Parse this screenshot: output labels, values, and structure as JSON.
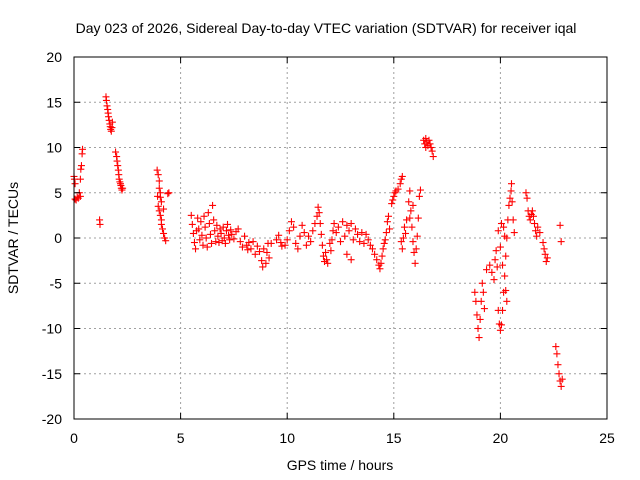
{
  "chart_data": {
    "type": "scatter",
    "title": "Day 023 of 2026, Sidereal Day-to-day VTEC variation (SDTVAR) for receiver iqal",
    "xlabel": "GPS time / hours",
    "ylabel": "SDTVAR / TECUs",
    "xlim": [
      0,
      25
    ],
    "ylim": [
      -20,
      20
    ],
    "xticks": [
      0,
      5,
      10,
      15,
      20,
      25
    ],
    "yticks": [
      -20,
      -15,
      -10,
      -5,
      0,
      5,
      10,
      15,
      20
    ],
    "grid": true,
    "marker": "+",
    "series": [
      {
        "name": "SDTVAR",
        "color": "#ff0000",
        "points": [
          [
            0.0,
            6.8
          ],
          [
            0.02,
            6.5
          ],
          [
            0.05,
            6.0
          ],
          [
            0.05,
            4.3
          ],
          [
            0.1,
            4.2
          ],
          [
            0.15,
            4.5
          ],
          [
            0.2,
            4.4
          ],
          [
            0.25,
            5.0
          ],
          [
            0.3,
            6.5
          ],
          [
            0.32,
            7.6
          ],
          [
            0.35,
            8.0
          ],
          [
            0.38,
            9.3
          ],
          [
            0.4,
            9.8
          ],
          [
            0.3,
            4.6
          ],
          [
            1.2,
            2.0
          ],
          [
            1.22,
            1.5
          ],
          [
            1.5,
            15.6
          ],
          [
            1.52,
            15.2
          ],
          [
            1.55,
            14.6
          ],
          [
            1.58,
            14.2
          ],
          [
            1.6,
            13.8
          ],
          [
            1.62,
            13.4
          ],
          [
            1.65,
            13.0
          ],
          [
            1.68,
            12.6
          ],
          [
            1.7,
            12.3
          ],
          [
            1.72,
            12.0
          ],
          [
            1.75,
            11.8
          ],
          [
            1.78,
            12.2
          ],
          [
            1.8,
            12.8
          ],
          [
            1.95,
            9.5
          ],
          [
            2.0,
            9.0
          ],
          [
            2.02,
            8.5
          ],
          [
            2.05,
            8.0
          ],
          [
            2.08,
            7.5
          ],
          [
            2.1,
            7.0
          ],
          [
            2.12,
            6.5
          ],
          [
            2.15,
            6.2
          ],
          [
            2.18,
            6.0
          ],
          [
            2.2,
            5.8
          ],
          [
            2.22,
            5.5
          ],
          [
            2.25,
            5.3
          ],
          [
            2.28,
            5.5
          ],
          [
            3.9,
            7.5
          ],
          [
            3.95,
            7.0
          ],
          [
            4.0,
            6.3
          ],
          [
            4.0,
            5.5
          ],
          [
            4.05,
            5.0
          ],
          [
            4.05,
            4.5
          ],
          [
            4.1,
            4.0
          ],
          [
            3.95,
            3.5
          ],
          [
            4.0,
            3.0
          ],
          [
            4.05,
            2.5
          ],
          [
            4.1,
            2.0
          ],
          [
            4.1,
            1.5
          ],
          [
            4.15,
            1.0
          ],
          [
            4.2,
            0.5
          ],
          [
            4.25,
            0.0
          ],
          [
            4.3,
            -0.3
          ],
          [
            4.2,
            3.2
          ],
          [
            4.4,
            4.9
          ],
          [
            4.45,
            5.0
          ],
          [
            3.92,
            4.6
          ],
          [
            5.5,
            2.5
          ],
          [
            5.55,
            1.5
          ],
          [
            5.6,
            0.5
          ],
          [
            5.65,
            -0.5
          ],
          [
            5.7,
            -1.2
          ],
          [
            5.75,
            0.8
          ],
          [
            5.8,
            2.2
          ],
          [
            5.85,
            1.0
          ],
          [
            5.9,
            -0.2
          ],
          [
            5.95,
            1.8
          ],
          [
            6.0,
            0.3
          ],
          [
            6.05,
            -0.8
          ],
          [
            6.1,
            2.4
          ],
          [
            6.15,
            1.2
          ],
          [
            6.2,
            0.0
          ],
          [
            6.25,
            -1.0
          ],
          [
            6.3,
            2.8
          ],
          [
            6.35,
            1.6
          ],
          [
            6.4,
            0.4
          ],
          [
            6.45,
            -0.6
          ],
          [
            6.5,
            3.6
          ],
          [
            6.55,
            2.0
          ],
          [
            6.6,
            0.8
          ],
          [
            6.65,
            -0.4
          ],
          [
            6.7,
            1.4
          ],
          [
            6.75,
            0.2
          ],
          [
            6.8,
            -0.5
          ],
          [
            6.85,
            1.0
          ],
          [
            6.9,
            0.5
          ],
          [
            6.95,
            -0.3
          ],
          [
            7.0,
            1.2
          ],
          [
            7.05,
            0.0
          ],
          [
            7.1,
            -0.6
          ],
          [
            7.15,
            0.8
          ],
          [
            7.2,
            1.5
          ],
          [
            7.25,
            0.3
          ],
          [
            7.3,
            -0.2
          ],
          [
            7.35,
            0.9
          ],
          [
            7.4,
            0.4
          ],
          [
            7.5,
            -0.1
          ],
          [
            7.6,
            0.7
          ],
          [
            7.7,
            1.0
          ],
          [
            7.8,
            -0.4
          ],
          [
            7.9,
            -1.0
          ],
          [
            8.0,
            0.2
          ],
          [
            8.1,
            -0.8
          ],
          [
            8.15,
            -1.3
          ],
          [
            8.2,
            -0.5
          ],
          [
            8.3,
            -1.2
          ],
          [
            8.4,
            -0.4
          ],
          [
            8.5,
            -1.8
          ],
          [
            8.6,
            -0.9
          ],
          [
            8.7,
            -1.5
          ],
          [
            8.8,
            -2.5
          ],
          [
            8.9,
            -1.2
          ],
          [
            9.0,
            -2.8
          ],
          [
            9.05,
            -1.6
          ],
          [
            9.1,
            -0.6
          ],
          [
            9.15,
            -2.2
          ],
          [
            8.85,
            -3.2
          ],
          [
            9.25,
            -0.6
          ],
          [
            9.5,
            -0.2
          ],
          [
            9.6,
            0.3
          ],
          [
            9.7,
            -0.5
          ],
          [
            9.75,
            -0.9
          ],
          [
            9.9,
            -0.8
          ],
          [
            10.0,
            -0.2
          ],
          [
            10.1,
            0.8
          ],
          [
            10.2,
            1.8
          ],
          [
            10.3,
            1.2
          ],
          [
            10.4,
            -0.6
          ],
          [
            10.5,
            -1.2
          ],
          [
            10.6,
            0.2
          ],
          [
            10.7,
            1.4
          ],
          [
            10.8,
            0.6
          ],
          [
            10.9,
            -0.8
          ],
          [
            11.0,
            0.2
          ],
          [
            11.1,
            -0.4
          ],
          [
            11.2,
            0.8
          ],
          [
            11.3,
            1.6
          ],
          [
            11.4,
            2.4
          ],
          [
            11.45,
            3.4
          ],
          [
            11.5,
            2.8
          ],
          [
            11.55,
            1.6
          ],
          [
            11.6,
            0.4
          ],
          [
            11.65,
            -0.8
          ],
          [
            11.7,
            -2.0
          ],
          [
            11.75,
            -2.6
          ],
          [
            11.8,
            -1.6
          ],
          [
            11.85,
            -2.4
          ],
          [
            11.9,
            -2.8
          ],
          [
            12.0,
            -0.6
          ],
          [
            12.05,
            -1.4
          ],
          [
            12.1,
            -0.2
          ],
          [
            12.15,
            0.8
          ],
          [
            12.2,
            1.6
          ],
          [
            12.3,
            0.6
          ],
          [
            12.4,
            1.2
          ],
          [
            12.5,
            -0.4
          ],
          [
            12.6,
            1.8
          ],
          [
            12.7,
            0.2
          ],
          [
            12.8,
            1.4
          ],
          [
            12.9,
            0.8
          ],
          [
            13.0,
            1.6
          ],
          [
            13.1,
            -0.2
          ],
          [
            13.2,
            1.0
          ],
          [
            13.3,
            0.4
          ],
          [
            13.4,
            -0.4
          ],
          [
            13.5,
            0.6
          ],
          [
            13.6,
            -0.6
          ],
          [
            13.7,
            0.4
          ],
          [
            13.8,
            -0.2
          ],
          [
            13.9,
            -0.8
          ],
          [
            14.0,
            -1.2
          ],
          [
            14.1,
            -1.8
          ],
          [
            14.2,
            -2.4
          ],
          [
            14.3,
            -3.0
          ],
          [
            14.35,
            -3.4
          ],
          [
            14.4,
            -2.8
          ],
          [
            14.45,
            -2.0
          ],
          [
            14.5,
            -1.2
          ],
          [
            14.55,
            -0.6
          ],
          [
            14.6,
            -0.2
          ],
          [
            14.65,
            0.6
          ],
          [
            14.7,
            1.8
          ],
          [
            14.75,
            2.4
          ],
          [
            14.8,
            1.0
          ],
          [
            13.0,
            -2.4
          ],
          [
            12.8,
            -1.8
          ],
          [
            14.9,
            3.8
          ],
          [
            14.95,
            4.2
          ],
          [
            15.0,
            4.6
          ],
          [
            15.05,
            5.0
          ],
          [
            15.1,
            5.2
          ],
          [
            15.2,
            5.4
          ],
          [
            15.3,
            6.0
          ],
          [
            15.35,
            6.5
          ],
          [
            15.4,
            6.8
          ],
          [
            15.35,
            -0.4
          ],
          [
            15.4,
            -1.2
          ],
          [
            15.45,
            0.0
          ],
          [
            15.5,
            1.2
          ],
          [
            15.55,
            0.5
          ],
          [
            15.6,
            2.0
          ],
          [
            15.7,
            4.0
          ],
          [
            15.75,
            5.2
          ],
          [
            15.8,
            3.0
          ],
          [
            15.85,
            1.2
          ],
          [
            15.9,
            -0.4
          ],
          [
            15.95,
            -1.6
          ],
          [
            16.0,
            -2.8
          ],
          [
            16.05,
            -1.2
          ],
          [
            16.1,
            0.2
          ],
          [
            16.15,
            2.2
          ],
          [
            16.2,
            4.6
          ],
          [
            16.25,
            5.3
          ],
          [
            15.75,
            2.2
          ],
          [
            15.9,
            3.6
          ],
          [
            16.4,
            10.8
          ],
          [
            16.45,
            10.4
          ],
          [
            16.5,
            11.0
          ],
          [
            16.55,
            10.6
          ],
          [
            16.6,
            10.2
          ],
          [
            16.65,
            10.8
          ],
          [
            16.7,
            10.4
          ],
          [
            16.75,
            10.0
          ],
          [
            16.8,
            9.6
          ],
          [
            16.85,
            9.0
          ],
          [
            16.5,
            10.0
          ],
          [
            18.8,
            -6.0
          ],
          [
            18.85,
            -7.0
          ],
          [
            18.9,
            -8.5
          ],
          [
            18.95,
            -10.0
          ],
          [
            19.0,
            -11.0
          ],
          [
            19.05,
            -9.0
          ],
          [
            19.1,
            -7.0
          ],
          [
            19.15,
            -5.0
          ],
          [
            19.2,
            -6.0
          ],
          [
            19.25,
            -7.8
          ],
          [
            19.35,
            -3.5
          ],
          [
            19.5,
            -3.0
          ],
          [
            19.6,
            -3.8
          ],
          [
            19.7,
            -4.6
          ],
          [
            19.75,
            -2.4
          ],
          [
            19.8,
            -1.4
          ],
          [
            19.85,
            -3.2
          ],
          [
            19.9,
            -8.0
          ],
          [
            19.95,
            -9.5
          ],
          [
            20.0,
            -10.2
          ],
          [
            20.05,
            -9.6
          ],
          [
            20.1,
            -8.0
          ],
          [
            20.15,
            -6.0
          ],
          [
            20.2,
            -4.2
          ],
          [
            20.25,
            -2.0
          ],
          [
            20.3,
            0.0
          ],
          [
            20.35,
            2.0
          ],
          [
            20.4,
            3.6
          ],
          [
            20.45,
            4.4
          ],
          [
            20.5,
            5.2
          ],
          [
            20.52,
            6.0
          ],
          [
            20.55,
            4.0
          ],
          [
            20.6,
            2.0
          ],
          [
            20.65,
            0.6
          ],
          [
            20.0,
            -1.0
          ],
          [
            20.05,
            1.6
          ],
          [
            19.9,
            0.8
          ],
          [
            20.1,
            -3.0
          ],
          [
            20.15,
            1.2
          ],
          [
            20.2,
            0.2
          ],
          [
            20.25,
            -5.8
          ],
          [
            20.3,
            -7.0
          ],
          [
            21.2,
            5.0
          ],
          [
            21.25,
            4.4
          ],
          [
            21.3,
            3.0
          ],
          [
            21.35,
            2.4
          ],
          [
            21.4,
            2.0
          ],
          [
            21.45,
            2.6
          ],
          [
            21.5,
            3.0
          ],
          [
            21.55,
            2.4
          ],
          [
            21.6,
            1.6
          ],
          [
            21.65,
            0.8
          ],
          [
            21.7,
            0.2
          ],
          [
            21.75,
            1.2
          ],
          [
            21.85,
            0.6
          ],
          [
            22.0,
            -0.5
          ],
          [
            22.05,
            -1.2
          ],
          [
            22.1,
            -1.8
          ],
          [
            22.15,
            -2.6
          ],
          [
            22.2,
            -2.2
          ],
          [
            22.6,
            -12.0
          ],
          [
            22.65,
            -12.8
          ],
          [
            22.7,
            -14.0
          ],
          [
            22.75,
            -15.0
          ],
          [
            22.8,
            -15.8
          ],
          [
            22.85,
            -16.4
          ],
          [
            22.9,
            -15.6
          ],
          [
            22.8,
            1.4
          ],
          [
            22.85,
            -0.4
          ]
        ]
      }
    ]
  }
}
